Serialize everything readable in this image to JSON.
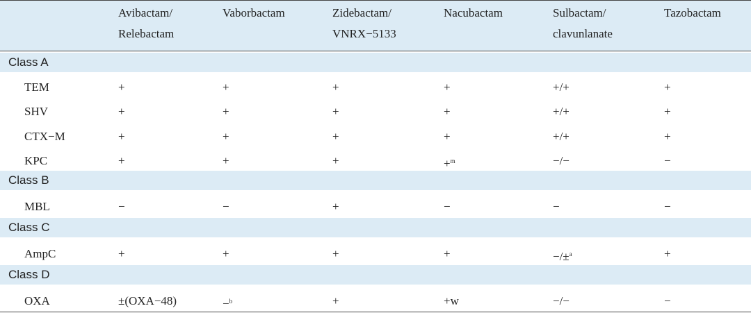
{
  "table": {
    "header": [
      [
        "Avibactam/",
        "Relebactam"
      ],
      [
        "Vaborbactam"
      ],
      [
        "Zidebactam/",
        "VNRX−5133"
      ],
      [
        "Nacubactam"
      ],
      [
        "Sulbactam/",
        "clavunlanate"
      ],
      [
        "Tazobactam"
      ]
    ],
    "sections": [
      {
        "label": "Class A",
        "rows": [
          [
            "TEM",
            {
              "text": "+"
            },
            {
              "text": "+"
            },
            {
              "text": "+"
            },
            {
              "text": "+"
            },
            {
              "text": "+/+"
            },
            {
              "text": "+"
            }
          ],
          [
            "SHV",
            {
              "text": "+"
            },
            {
              "text": "+"
            },
            {
              "text": "+"
            },
            {
              "text": "+"
            },
            {
              "text": "+/+"
            },
            {
              "text": "+"
            }
          ],
          [
            "CTX−M",
            {
              "text": "+"
            },
            {
              "text": "+"
            },
            {
              "text": "+"
            },
            {
              "text": "+"
            },
            {
              "text": "+/+"
            },
            {
              "text": "+"
            }
          ],
          [
            "KPC",
            {
              "text": "+"
            },
            {
              "text": "+"
            },
            {
              "text": "+"
            },
            {
              "text": "+",
              "sup": "m"
            },
            {
              "text": "−/−"
            },
            {
              "text": "−"
            }
          ]
        ]
      },
      {
        "label": "Class B",
        "rows": [
          [
            "MBL",
            {
              "text": "−"
            },
            {
              "text": "−"
            },
            {
              "text": "+"
            },
            {
              "text": "−"
            },
            {
              "text": "−"
            },
            {
              "text": "−"
            }
          ]
        ]
      },
      {
        "label": "Class C",
        "rows": [
          [
            "AmpC",
            {
              "text": "+"
            },
            {
              "text": "+"
            },
            {
              "text": "+"
            },
            {
              "text": "+"
            },
            {
              "text": "−/±",
              "sup": "a"
            },
            {
              "text": "+"
            }
          ]
        ]
      },
      {
        "label": "Class D",
        "rows": [
          [
            "OXA",
            {
              "text": "±(OXA−48)"
            },
            {
              "text": "−",
              "sup": "b"
            },
            {
              "text": "+"
            },
            {
              "text": "+w"
            },
            {
              "text": "−/−"
            },
            {
              "text": "−"
            }
          ]
        ]
      }
    ]
  }
}
